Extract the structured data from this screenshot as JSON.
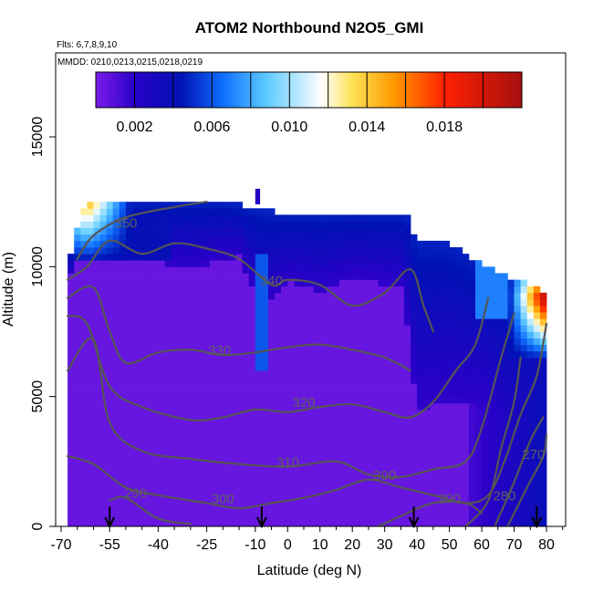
{
  "chart_data": {
    "type": "heatmap",
    "title": "ATOM2 Northbound N2O5_GMI",
    "annotations": [
      "Flts: 6,7,8,9,10",
      "MMDD: 0210,0213,0215,0218,0219"
    ],
    "xlabel": "Latitude (deg N)",
    "ylabel": "Altitude (m)",
    "xlim": [
      -70,
      82
    ],
    "ylim": [
      0,
      17500
    ],
    "x_ticks": [
      -70,
      -55,
      -40,
      -25,
      -10,
      0,
      10,
      20,
      30,
      40,
      50,
      60,
      70,
      80
    ],
    "x_tick_labels": [
      "-70",
      "-55",
      "-40",
      "-25",
      "-10",
      "0",
      "10",
      "20",
      "30",
      "40",
      "50",
      "60",
      "70",
      "80"
    ],
    "y_ticks": [
      0,
      5000,
      10000,
      15000
    ],
    "y_tick_labels": [
      "0",
      "5000",
      "10000",
      "15000"
    ],
    "colorbar": {
      "range": [
        0,
        0.022
      ],
      "ticks": [
        0.002,
        0.006,
        0.01,
        0.014,
        0.018
      ],
      "tick_labels": [
        "0.002",
        "0.006",
        "0.010",
        "0.014",
        "0.018"
      ],
      "colors": [
        "#7b1de8",
        "#0a00c8",
        "#1888ff",
        "#ffffff",
        "#ffd23c",
        "#ff8000",
        "#ff0000",
        "#a01010"
      ]
    },
    "field_description": {
      "background_value": 0.0005,
      "top_altitude_by_lat": [
        {
          "lat": -68,
          "alt": 10200
        },
        {
          "lat": -66,
          "alt": 11000
        },
        {
          "lat": -62,
          "alt": 12500
        },
        {
          "lat": -20,
          "alt": 12500
        },
        {
          "lat": 0,
          "alt": 12000
        },
        {
          "lat": 37,
          "alt": 12000
        },
        {
          "lat": 40,
          "alt": 11000
        },
        {
          "lat": 48,
          "alt": 11000
        },
        {
          "lat": 55,
          "alt": 10500
        },
        {
          "lat": 62,
          "alt": 10000
        },
        {
          "lat": 80,
          "alt": 9000
        }
      ],
      "arrows_at_lat": [
        -55,
        -8,
        39,
        77
      ]
    },
    "contours": [
      {
        "label": "350",
        "label_lat": -50,
        "label_alt": 11500
      },
      {
        "label": "340",
        "label_lat": -5,
        "label_alt": 9300
      },
      {
        "label": "330",
        "label_lat": -21,
        "label_alt": 6600
      },
      {
        "label": "320",
        "label_lat": 5,
        "label_alt": 4600
      },
      {
        "label": "310",
        "label_lat": 0,
        "label_alt": 2300
      },
      {
        "label": "300",
        "label_lat": 30,
        "label_alt": 1800
      },
      {
        "label": "300",
        "label_lat": -20,
        "label_alt": 900
      },
      {
        "label": "290",
        "label_lat": -47,
        "label_alt": 1100
      },
      {
        "label": "290",
        "label_lat": 50,
        "label_alt": 900
      },
      {
        "label": "280",
        "label_lat": 67,
        "label_alt": 1000
      },
      {
        "label": "270",
        "label_lat": 76,
        "label_alt": 2600
      }
    ]
  }
}
